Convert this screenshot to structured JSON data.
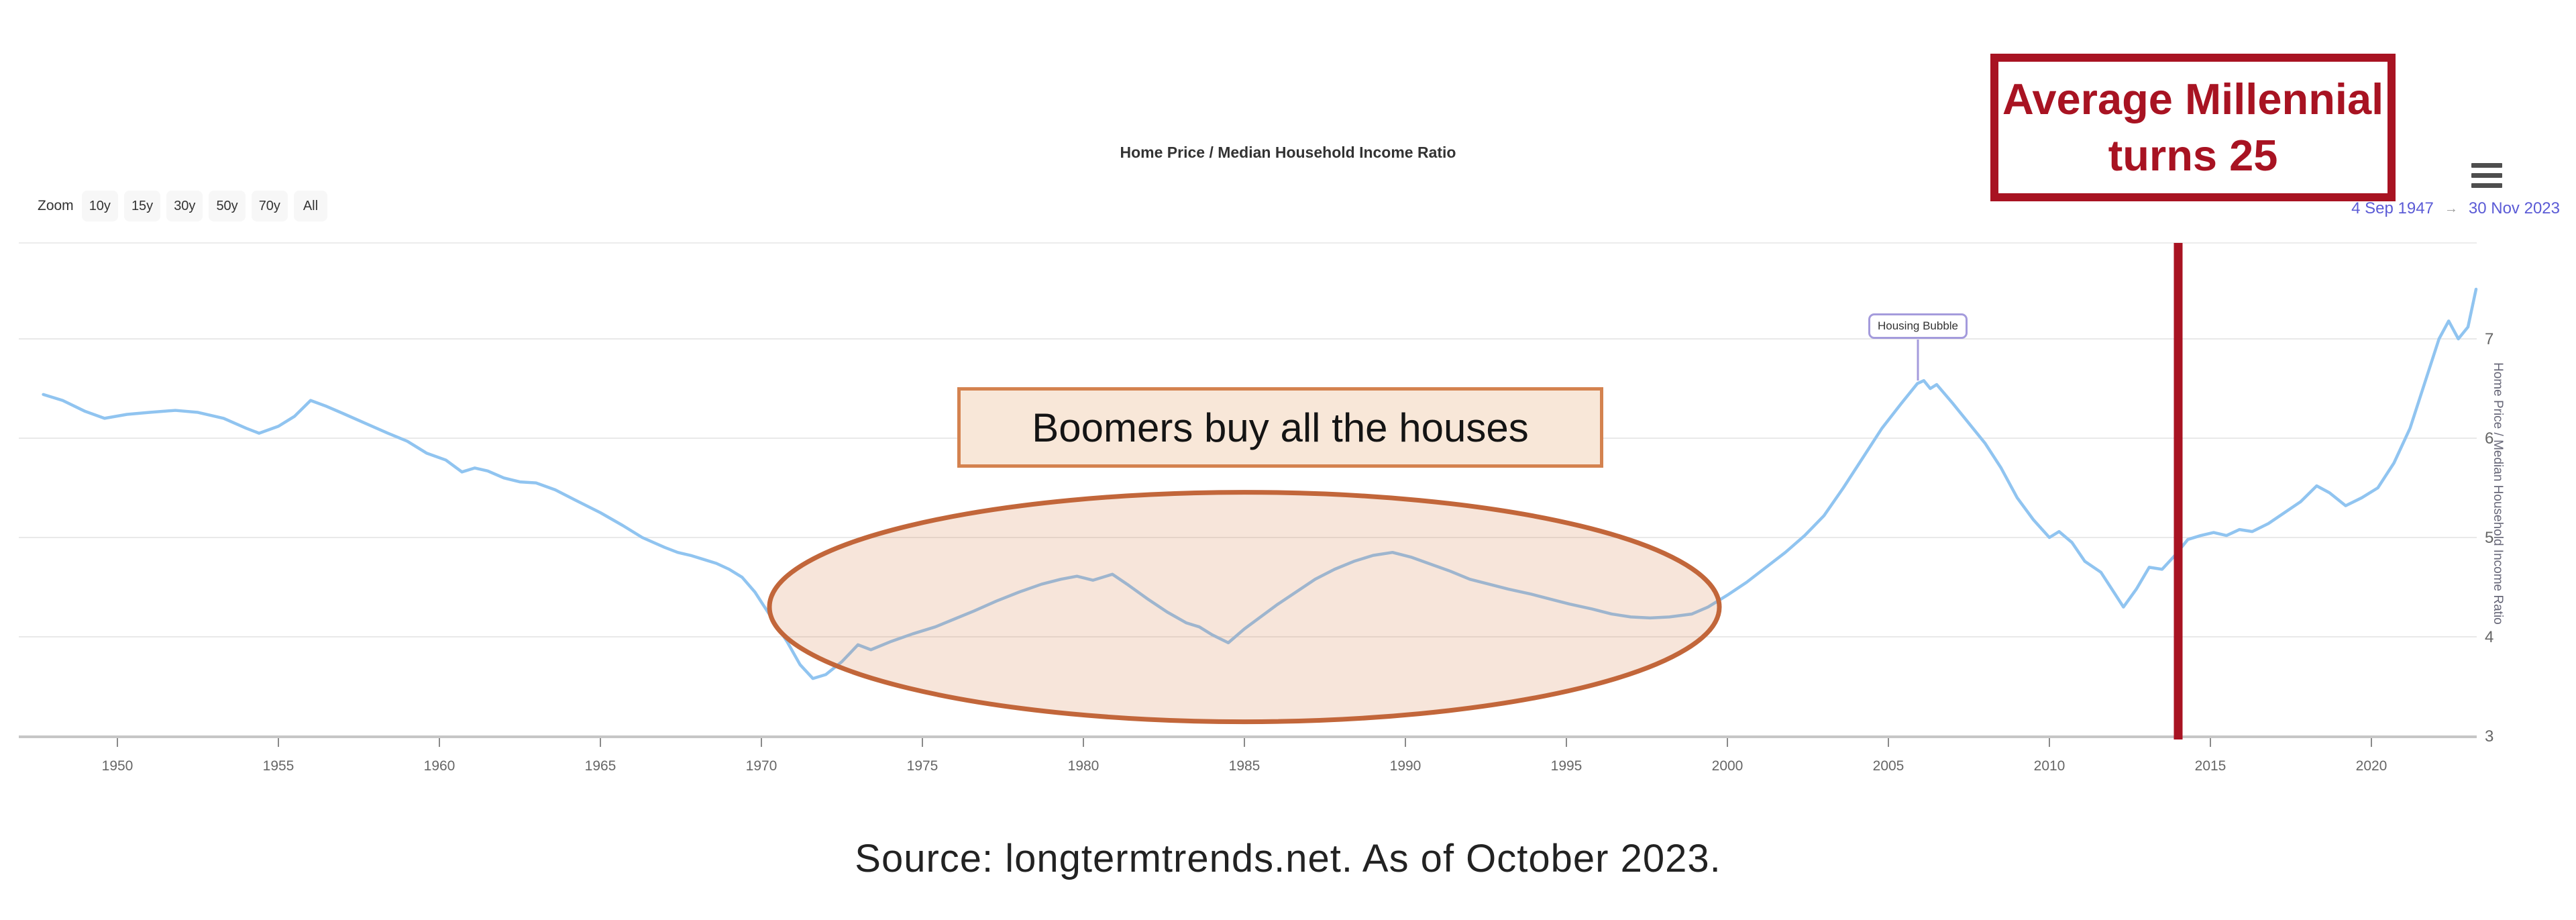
{
  "header": {
    "title": "Home Price / Median Household Income Ratio"
  },
  "toolbar": {
    "zoom_label": "Zoom",
    "buttons": [
      "10y",
      "15y",
      "30y",
      "50y",
      "70y",
      "All"
    ]
  },
  "range": {
    "from": "4 Sep 1947",
    "arrow": "→",
    "to": "30 Nov 2023"
  },
  "chart_data": {
    "type": "line",
    "title": "Home Price / Median Household Income Ratio",
    "xlabel": "",
    "ylabel": "Home Price / Median Household Income Ratio",
    "series_name": "Home Price / Median Household Income Ratio",
    "color": "#90c4f0",
    "grid": "horizontal",
    "legend": "none",
    "x_ticks": [
      1950,
      1955,
      1960,
      1965,
      1970,
      1975,
      1980,
      1985,
      1990,
      1995,
      2000,
      2005,
      2010,
      2015,
      2020
    ],
    "y_ticks": [
      3,
      4,
      5,
      6,
      7
    ],
    "xlim": [
      1947.0,
      2023.3
    ],
    "ylim": [
      3,
      7.97
    ],
    "x": [
      1947.7,
      1948.3,
      1949,
      1949.6,
      1950.3,
      1951,
      1951.8,
      1952.5,
      1953.3,
      1954,
      1954.4,
      1955,
      1955.5,
      1956,
      1956.5,
      1957,
      1957.7,
      1958.4,
      1959,
      1959.6,
      1960.2,
      1960.7,
      1961.1,
      1961.5,
      1962,
      1962.5,
      1963,
      1963.6,
      1964.2,
      1965,
      1965.7,
      1966.3,
      1967,
      1967.4,
      1967.8,
      1968.2,
      1968.6,
      1969,
      1969.4,
      1969.8,
      1970.3,
      1970.8,
      1971.2,
      1971.6,
      1972,
      1972.5,
      1973,
      1973.4,
      1974,
      1974.7,
      1975.4,
      1976,
      1976.6,
      1977.3,
      1978,
      1978.7,
      1979.3,
      1979.8,
      1980.3,
      1980.9,
      1981.4,
      1982,
      1982.6,
      1983.2,
      1983.6,
      1984,
      1984.5,
      1985,
      1985.5,
      1986,
      1986.6,
      1987.2,
      1987.8,
      1988.4,
      1989,
      1989.6,
      1990.2,
      1990.8,
      1991.4,
      1992,
      1992.6,
      1993.2,
      1993.9,
      1994.5,
      1995.1,
      1995.8,
      1996.4,
      1997,
      1997.6,
      1998.2,
      1998.9,
      1999.4,
      2000,
      2000.6,
      2001.2,
      2001.8,
      2002.4,
      2003,
      2003.6,
      2004.2,
      2004.8,
      2005.4,
      2005.9,
      2006.1,
      2006.3,
      2006.5,
      2007,
      2007.5,
      2008,
      2008.5,
      2009,
      2009.5,
      2010,
      2010.3,
      2010.7,
      2011.1,
      2011.6,
      2012,
      2012.3,
      2012.7,
      2013.1,
      2013.5,
      2013.9,
      2014.3,
      2014.7,
      2015.1,
      2015.5,
      2015.9,
      2016.3,
      2016.8,
      2017.3,
      2017.8,
      2018.3,
      2018.7,
      2019.2,
      2019.7,
      2020.2,
      2020.7,
      2021.2,
      2021.7,
      2022.1,
      2022.4,
      2022.7,
      2023,
      2023.25
    ],
    "values": [
      6.44,
      6.38,
      6.27,
      6.2,
      6.24,
      6.26,
      6.28,
      6.26,
      6.2,
      6.1,
      6.05,
      6.12,
      6.22,
      6.38,
      6.32,
      6.25,
      6.15,
      6.05,
      5.97,
      5.85,
      5.78,
      5.66,
      5.7,
      5.67,
      5.6,
      5.56,
      5.55,
      5.48,
      5.38,
      5.25,
      5.12,
      5.0,
      4.9,
      4.85,
      4.82,
      4.78,
      4.74,
      4.68,
      4.6,
      4.45,
      4.2,
      3.95,
      3.72,
      3.58,
      3.62,
      3.75,
      3.92,
      3.87,
      3.95,
      4.03,
      4.1,
      4.18,
      4.26,
      4.36,
      4.45,
      4.53,
      4.58,
      4.61,
      4.57,
      4.63,
      4.52,
      4.38,
      4.25,
      4.14,
      4.1,
      4.02,
      3.94,
      4.08,
      4.2,
      4.32,
      4.45,
      4.58,
      4.68,
      4.76,
      4.82,
      4.85,
      4.8,
      4.73,
      4.66,
      4.58,
      4.53,
      4.48,
      4.43,
      4.38,
      4.33,
      4.28,
      4.23,
      4.2,
      4.19,
      4.2,
      4.23,
      4.3,
      4.42,
      4.55,
      4.7,
      4.85,
      5.02,
      5.22,
      5.5,
      5.8,
      6.1,
      6.35,
      6.55,
      6.58,
      6.5,
      6.54,
      6.35,
      6.15,
      5.95,
      5.7,
      5.4,
      5.18,
      5.0,
      5.06,
      4.95,
      4.76,
      4.65,
      4.45,
      4.3,
      4.48,
      4.7,
      4.68,
      4.82,
      4.98,
      5.02,
      5.05,
      5.02,
      5.08,
      5.06,
      5.14,
      5.25,
      5.36,
      5.52,
      5.45,
      5.32,
      5.4,
      5.5,
      5.75,
      6.1,
      6.6,
      7.0,
      7.18,
      7.0,
      7.12,
      7.5
    ]
  },
  "annotations": {
    "housing_bubble": {
      "label": "Housing Bubble",
      "border_color": "#a49bdc"
    },
    "boomers": {
      "label": "Boomers buy all the houses",
      "border_color": "#d4824f",
      "fill_color": "#f8e7d8",
      "ellipse_stroke": "#c2663a",
      "ellipse_fill": "rgba(213,124,72,0.20)"
    },
    "millennial": {
      "line1": "Average Millennial",
      "line2": "turns 25",
      "color": "#a81322",
      "marker_year": 2014
    }
  },
  "footer": {
    "source": "Source: longtermtrends.net. As of October 2023."
  }
}
